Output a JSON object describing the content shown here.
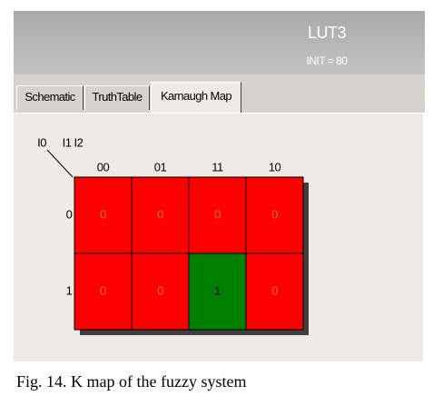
{
  "header": {
    "title": "LUT3",
    "subtitle": "INIT = 80"
  },
  "tabs": [
    "Schematic",
    "TruthTable",
    "Karnaugh Map"
  ],
  "kmap": {
    "row_var": "I0",
    "col_vars": "I1 I2",
    "columns": [
      "00",
      "01",
      "11",
      "10"
    ],
    "rows": [
      {
        "label": "0",
        "cells": [
          0,
          0,
          0,
          0
        ]
      },
      {
        "label": "1",
        "cells": [
          0,
          0,
          1,
          0
        ]
      }
    ]
  },
  "caption": "Fig. 14. K map of the fuzzy system"
}
